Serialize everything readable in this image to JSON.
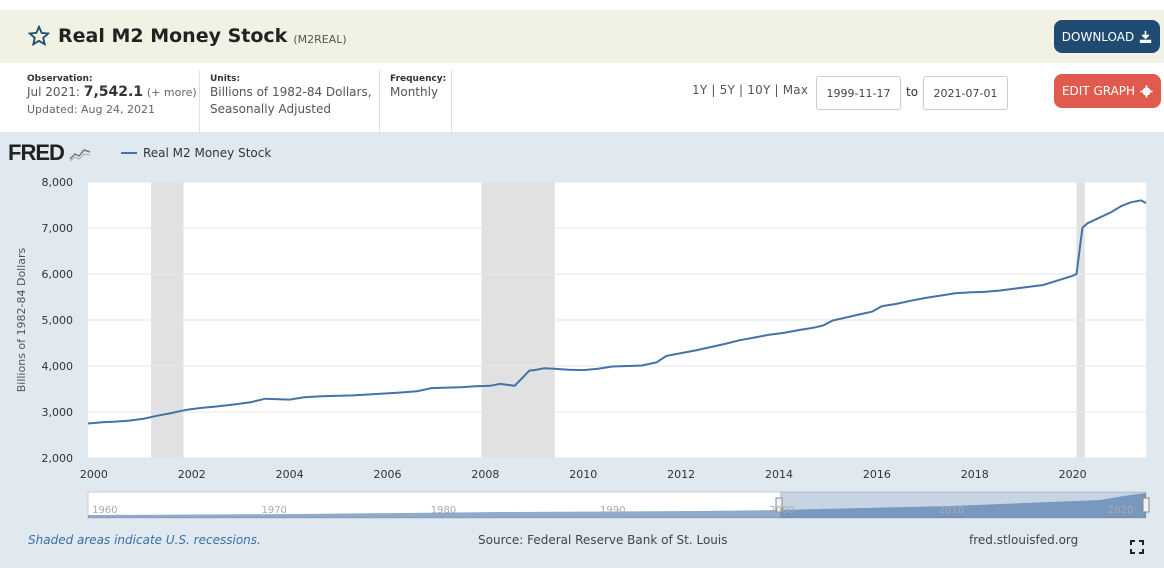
{
  "header": {
    "title": "Real M2 Money Stock",
    "series_id": "(M2REAL)",
    "download_label": "DOWNLOAD"
  },
  "observation": {
    "label": "Observation:",
    "date": "Jul 2021:",
    "value": "7,542.1",
    "more": "(+ more)",
    "updated": "Updated: Aug 24, 2021"
  },
  "units": {
    "label": "Units:",
    "line1": "Billions of 1982-84 Dollars,",
    "line2": "Seasonally Adjusted"
  },
  "frequency": {
    "label": "Frequency:",
    "value": "Monthly"
  },
  "range": {
    "links": "1Y | 5Y | 10Y | Max",
    "start": "1999-11-17",
    "to_label": "to",
    "end": "2021-07-01"
  },
  "edit_label": "EDIT GRAPH",
  "footer": {
    "recession_note": "Shaded areas indicate U.S. recessions.",
    "source": "Source: Federal Reserve Bank of St. Louis",
    "url": "fred.stlouisfed.org"
  },
  "logo_text": "FRED",
  "colors": {
    "line": "#4572a7",
    "recession": "#e1e1e1",
    "download_button": "#1f4b73",
    "edit_button": "#e05b4d"
  },
  "chart_data": {
    "type": "line",
    "ylabel": "Billions of 1982-84 Dollars",
    "ylim": [
      2000,
      8000
    ],
    "xlim": [
      1999.88,
      2021.5
    ],
    "yticks": [
      2000,
      3000,
      4000,
      5000,
      6000,
      7000,
      8000
    ],
    "ytick_labels": [
      "2,000",
      "3,000",
      "4,000",
      "5,000",
      "6,000",
      "7,000",
      "8,000"
    ],
    "xticks": [
      2000,
      2002,
      2004,
      2006,
      2008,
      2010,
      2012,
      2014,
      2016,
      2018,
      2020
    ],
    "xtick_labels": [
      "2000",
      "2002",
      "2004",
      "2006",
      "2008",
      "2010",
      "2012",
      "2014",
      "2016",
      "2018",
      "2020"
    ],
    "grid": true,
    "recessions": [
      [
        2001.17,
        2001.83
      ],
      [
        2007.92,
        2009.42
      ],
      [
        2020.08,
        2020.25
      ]
    ],
    "series": [
      {
        "name": "Real M2 Money Stock",
        "x": [
          1999.88,
          2000.2,
          2000.4,
          2000.7,
          2001.0,
          2001.3,
          2001.6,
          2001.9,
          2002.2,
          2002.5,
          2002.9,
          2003.2,
          2003.5,
          2003.7,
          2004.0,
          2004.3,
          2004.6,
          2004.9,
          2005.3,
          2005.6,
          2005.9,
          2006.2,
          2006.6,
          2006.9,
          2007.2,
          2007.5,
          2007.8,
          2008.1,
          2008.3,
          2008.6,
          2008.9,
          2009.0,
          2009.2,
          2009.4,
          2009.7,
          2010.0,
          2010.3,
          2010.6,
          2010.9,
          2011.2,
          2011.5,
          2011.7,
          2012.0,
          2012.3,
          2012.6,
          2012.9,
          2013.2,
          2013.5,
          2013.8,
          2014.1,
          2014.4,
          2014.7,
          2014.9,
          2015.1,
          2015.4,
          2015.6,
          2015.9,
          2016.1,
          2016.4,
          2016.7,
          2017.0,
          2017.3,
          2017.6,
          2017.9,
          2018.2,
          2018.5,
          2018.8,
          2019.1,
          2019.4,
          2019.7,
          2020.0,
          2020.08,
          2020.2,
          2020.3,
          2020.5,
          2020.8,
          2021.0,
          2021.2,
          2021.4,
          2021.5
        ],
        "y": [
          2750,
          2780,
          2790,
          2810,
          2850,
          2920,
          2980,
          3050,
          3090,
          3120,
          3170,
          3210,
          3290,
          3280,
          3270,
          3320,
          3340,
          3350,
          3360,
          3380,
          3400,
          3420,
          3450,
          3520,
          3530,
          3540,
          3560,
          3570,
          3610,
          3570,
          3900,
          3910,
          3950,
          3940,
          3920,
          3910,
          3940,
          3990,
          4000,
          4010,
          4080,
          4220,
          4280,
          4340,
          4410,
          4480,
          4560,
          4620,
          4680,
          4720,
          4780,
          4830,
          4880,
          4990,
          5060,
          5110,
          5180,
          5300,
          5350,
          5420,
          5480,
          5530,
          5580,
          5600,
          5610,
          5640,
          5680,
          5720,
          5760,
          5860,
          5960,
          6000,
          7000,
          7100,
          7200,
          7350,
          7480,
          7560,
          7600,
          7542
        ]
      }
    ]
  },
  "navigator": {
    "ticks": [
      "1960",
      "1970",
      "1980",
      "1990",
      "2000",
      "2010",
      "2020"
    ]
  }
}
